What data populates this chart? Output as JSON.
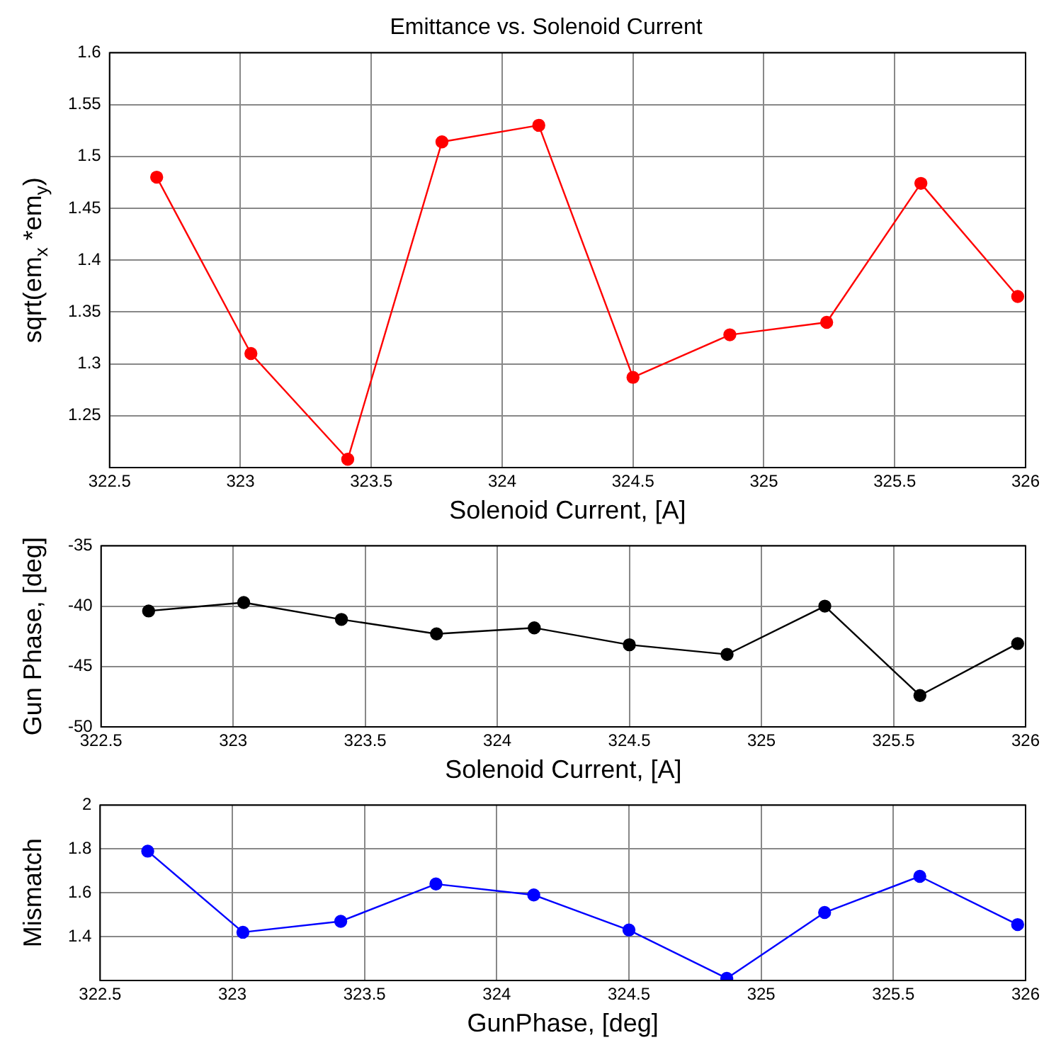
{
  "chart_data": [
    {
      "type": "line",
      "title": "Emittance vs. Solenoid Current",
      "xlabel": "Solenoid Current, [A]",
      "ylabel": "sqrt(em$_{x}$ *em$_{y}$)",
      "x": [
        322.68,
        323.04,
        323.41,
        323.77,
        324.14,
        324.5,
        324.87,
        325.24,
        325.6,
        325.97
      ],
      "series": [
        {
          "color": "#ff0000",
          "values": [
            1.48,
            1.31,
            1.208,
            1.514,
            1.53,
            1.287,
            1.328,
            1.34,
            1.474,
            1.365
          ]
        }
      ],
      "xlim": [
        322.5,
        326
      ],
      "xticks": [
        322.5,
        323,
        323.5,
        324,
        324.5,
        325,
        325.5,
        326
      ],
      "ylim": [
        1.2,
        1.6
      ],
      "yticks": [
        1.25,
        1.3,
        1.35,
        1.4,
        1.45,
        1.5,
        1.55,
        1.6
      ],
      "grid": true,
      "marker": "circle",
      "line_style": "solid"
    },
    {
      "type": "line",
      "xlabel": "Solenoid Current, [A]",
      "ylabel": "Gun Phase, [deg]",
      "x": [
        322.68,
        323.04,
        323.41,
        323.77,
        324.14,
        324.5,
        324.87,
        325.24,
        325.6,
        325.97
      ],
      "series": [
        {
          "color": "#000000",
          "values": [
            -40.4,
            -39.7,
            -41.1,
            -42.3,
            -41.8,
            -43.2,
            -44.0,
            -40.0,
            -47.4,
            -43.1
          ]
        }
      ],
      "xlim": [
        322.5,
        326
      ],
      "xticks": [
        322.5,
        323,
        323.5,
        324,
        324.5,
        325,
        325.5,
        326
      ],
      "ylim": [
        -50,
        -35
      ],
      "yticks": [
        -50,
        -45,
        -40,
        -35
      ],
      "grid": true,
      "marker": "circle",
      "line_style": "solid"
    },
    {
      "type": "line",
      "xlabel": "GunPhase, [deg]",
      "ylabel": "Mismatch",
      "x": [
        322.68,
        323.04,
        323.41,
        323.77,
        324.14,
        324.5,
        324.87,
        325.24,
        325.6,
        325.97
      ],
      "series": [
        {
          "color": "#0000ff",
          "values": [
            1.79,
            1.42,
            1.47,
            1.64,
            1.59,
            1.43,
            1.21,
            1.51,
            1.675,
            1.455
          ]
        }
      ],
      "xlim": [
        322.5,
        326
      ],
      "xticks": [
        322.5,
        323,
        323.5,
        324,
        324.5,
        325,
        325.5,
        326
      ],
      "ylim": [
        1.2,
        2
      ],
      "yticks": [
        1.4,
        1.6,
        1.8,
        2
      ],
      "grid": true,
      "marker": "circle",
      "line_style": "solid"
    }
  ]
}
